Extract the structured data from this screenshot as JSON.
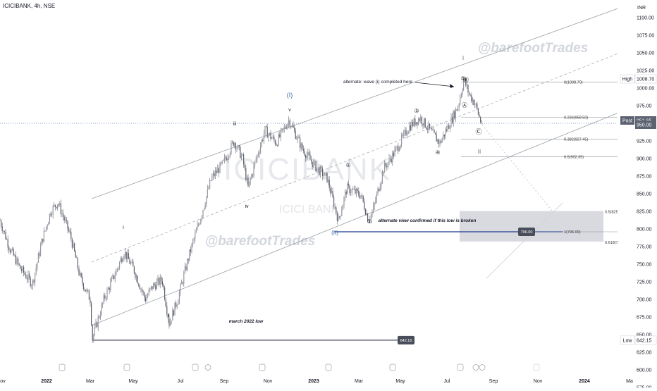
{
  "symbol_label": "ICICIBANK, 4h, NSE",
  "currency": "INR",
  "watermark": {
    "ticker": "ICICIBANK",
    "name": "ICICI BANK",
    "handle": "@barefootTrades"
  },
  "chart_data": {
    "type": "candlestick",
    "ylim": [
      575,
      1125
    ],
    "y_ticks": [
      575,
      600,
      625,
      650,
      675,
      700,
      725,
      750,
      775,
      800,
      825,
      850,
      875,
      900,
      925,
      950,
      975,
      1000,
      1025,
      1050,
      1075,
      1100
    ],
    "x_ticks": [
      "ov",
      "2022",
      "Mar",
      "May",
      "Jul",
      "Sep",
      "Nov",
      "2023",
      "Mar",
      "May",
      "Jul",
      "Sep",
      "Nov",
      "2024",
      "Ma"
    ],
    "price_path": [
      [
        0,
        812
      ],
      [
        14,
        772
      ],
      [
        28,
        745
      ],
      [
        46,
        722
      ],
      [
        60,
        785
      ],
      [
        72,
        825
      ],
      [
        82,
        838
      ],
      [
        100,
        790
      ],
      [
        114,
        730
      ],
      [
        128,
        700
      ],
      [
        131,
        644
      ],
      [
        148,
        702
      ],
      [
        164,
        738
      ],
      [
        176,
        768
      ],
      [
        190,
        742
      ],
      [
        206,
        700
      ],
      [
        216,
        718
      ],
      [
        230,
        728
      ],
      [
        240,
        666
      ],
      [
        252,
        700
      ],
      [
        268,
        762
      ],
      [
        285,
        818
      ],
      [
        300,
        872
      ],
      [
        316,
        892
      ],
      [
        332,
        925
      ],
      [
        344,
        900
      ],
      [
        352,
        858
      ],
      [
        362,
        895
      ],
      [
        376,
        940
      ],
      [
        392,
        922
      ],
      [
        410,
        955
      ],
      [
        428,
        915
      ],
      [
        446,
        890
      ],
      [
        464,
        872
      ],
      [
        480,
        812
      ],
      [
        492,
        858
      ],
      [
        512,
        848
      ],
      [
        522,
        815
      ],
      [
        528,
        822
      ],
      [
        544,
        885
      ],
      [
        562,
        912
      ],
      [
        580,
        945
      ],
      [
        596,
        958
      ],
      [
        616,
        932
      ],
      [
        624,
        922
      ],
      [
        638,
        950
      ],
      [
        650,
        975
      ],
      [
        658,
        1012
      ],
      [
        666,
        990
      ],
      [
        674,
        978
      ],
      [
        682,
        952
      ]
    ],
    "price_series_label": "Last",
    "last_price": 951.65,
    "high": 1008.7,
    "low": 642.15,
    "fibonacci": [
      {
        "ratio": "0",
        "price": 1008.7
      },
      {
        "ratio": "0.236",
        "price": 958.5
      },
      {
        "ratio": "0.382",
        "price": 927.45
      },
      {
        "ratio": "0.5",
        "price": 902.35
      },
      {
        "ratio": "1",
        "price": 796.0
      }
    ],
    "fib_zone": [
      {
        "ratio": "0.5",
        "price": 825.45
      },
      {
        "ratio": "0.618",
        "price": 782.15
      }
    ],
    "price_tags": [
      {
        "label": "High",
        "value": "1008.70"
      },
      {
        "label": "Post",
        "value": "951.65"
      },
      {
        "label": "",
        "value": "950.00"
      },
      {
        "label": "Low",
        "value": "642.15"
      }
    ],
    "level_tags": [
      "642.15",
      "796.00"
    ],
    "annotations": [
      {
        "text": "alternate: wave (i) completed here"
      },
      {
        "text": "alternate view confirmed if this low is broken"
      },
      {
        "text": "march 2022 low"
      }
    ],
    "wave_labels": [
      "I",
      "(I)",
      "v",
      "iii",
      "iv",
      "ii",
      "i",
      "II",
      "(II)",
      "①",
      "②",
      "③",
      "④",
      "⑤",
      "Ⓐ",
      "Ⓑ",
      "Ⓒ"
    ]
  }
}
